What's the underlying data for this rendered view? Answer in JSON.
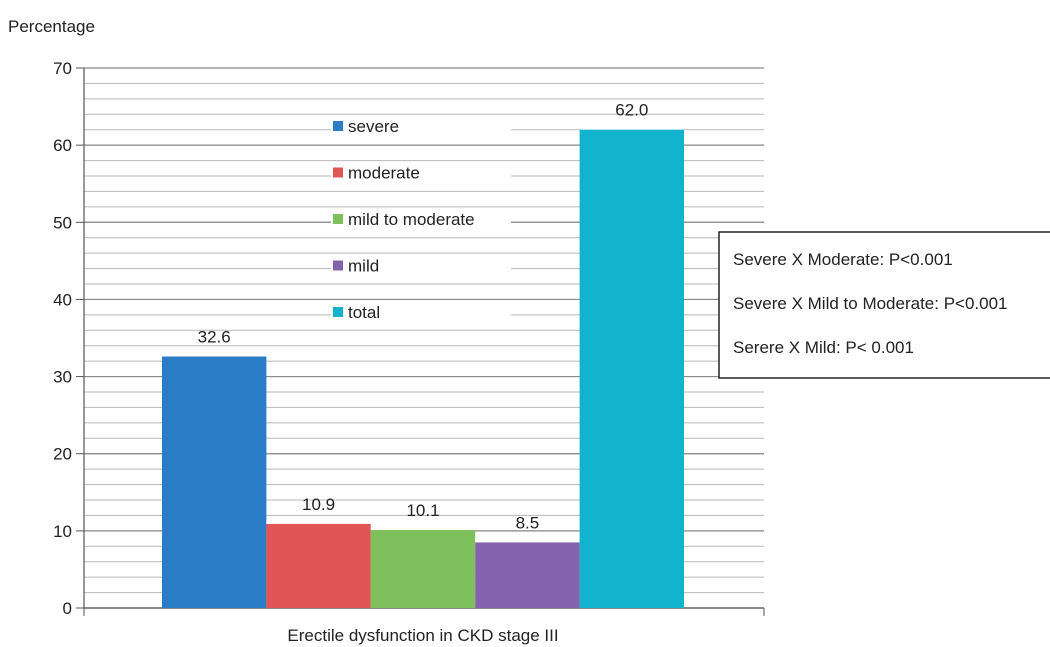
{
  "chart_data": {
    "type": "bar",
    "ylabel": "Percentage",
    "xlabel": "Erectile dysfunction in CKD stage III",
    "ylim": [
      0,
      70
    ],
    "yticks": [
      0,
      10,
      20,
      30,
      40,
      50,
      60,
      70
    ],
    "minor_grid_step": 2,
    "grid": true,
    "legend_position": "center",
    "series": [
      {
        "name": "severe",
        "value": 32.6,
        "label": "32.6",
        "color": "#2a7cc7"
      },
      {
        "name": "moderate",
        "value": 10.9,
        "label": "10.9",
        "color": "#e15557"
      },
      {
        "name": "mild to moderate",
        "value": 10.1,
        "label": "10.1",
        "color": "#7ec15c"
      },
      {
        "name": "mild",
        "value": 8.5,
        "label": "8.5",
        "color": "#8462ad"
      },
      {
        "name": "total",
        "value": 62.0,
        "label": "62.0",
        "color": "#12b3cf"
      }
    ],
    "annotation": [
      "Severe X Moderate: P<0.001",
      "Severe X Mild to Moderate: P<0.001",
      "Serere X Mild: P< 0.001"
    ]
  }
}
